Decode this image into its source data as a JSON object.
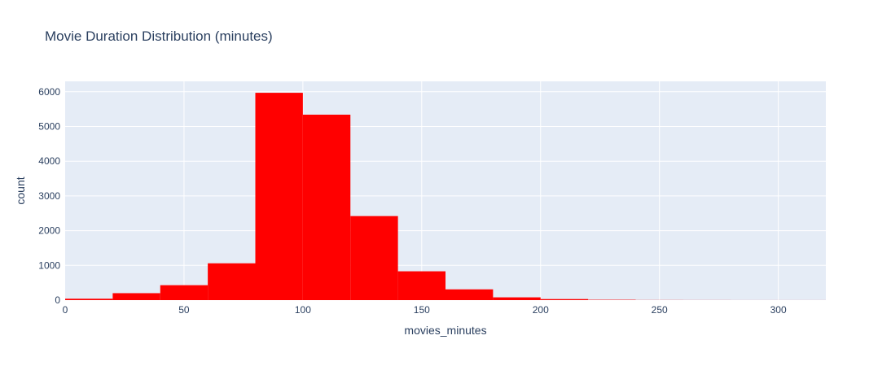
{
  "chart_data": {
    "type": "bar",
    "title": "Movie Duration Distribution (minutes)",
    "xlabel": "movies_minutes",
    "ylabel": "count",
    "bins": [
      {
        "x0": 0,
        "x1": 20,
        "count": 40
      },
      {
        "x0": 20,
        "x1": 40,
        "count": 200
      },
      {
        "x0": 40,
        "x1": 60,
        "count": 430
      },
      {
        "x0": 60,
        "x1": 80,
        "count": 1060
      },
      {
        "x0": 80,
        "x1": 100,
        "count": 5970
      },
      {
        "x0": 100,
        "x1": 120,
        "count": 5340
      },
      {
        "x0": 120,
        "x1": 140,
        "count": 2420
      },
      {
        "x0": 140,
        "x1": 160,
        "count": 830
      },
      {
        "x0": 160,
        "x1": 180,
        "count": 310
      },
      {
        "x0": 180,
        "x1": 200,
        "count": 80
      },
      {
        "x0": 200,
        "x1": 220,
        "count": 30
      },
      {
        "x0": 220,
        "x1": 240,
        "count": 10
      },
      {
        "x0": 240,
        "x1": 260,
        "count": 3
      },
      {
        "x0": 260,
        "x1": 280,
        "count": 2
      },
      {
        "x0": 280,
        "x1": 300,
        "count": 1
      },
      {
        "x0": 300,
        "x1": 320,
        "count": 1
      }
    ],
    "xlim": [
      0,
      320
    ],
    "ylim": [
      0,
      6300
    ],
    "xticks": [
      0,
      50,
      100,
      150,
      200,
      250,
      300
    ],
    "yticks": [
      0,
      1000,
      2000,
      3000,
      4000,
      5000,
      6000
    ],
    "bar_color": "#ff0000",
    "plot_bg": "#e5ecf6",
    "grid": true
  }
}
